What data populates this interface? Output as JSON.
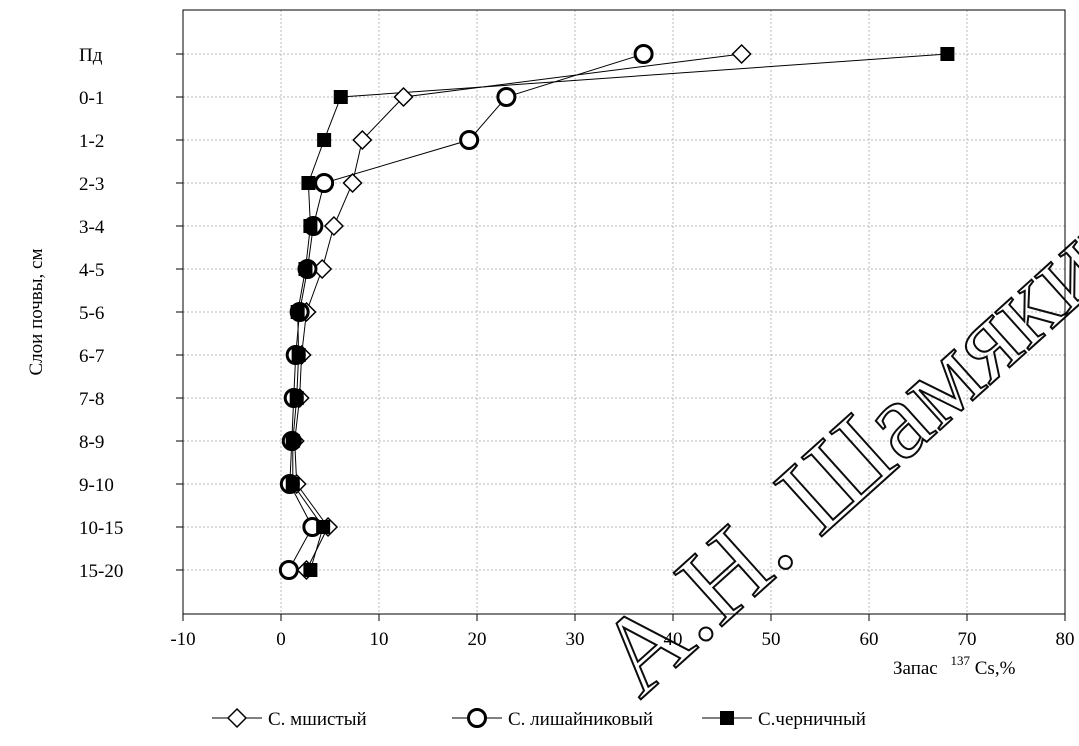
{
  "chart_data": {
    "type": "line",
    "title": "",
    "xlabel": "Запас",
    "xlabel_isotope_sup": "137",
    "xlabel_rest": "Cs,%",
    "ylabel": "Слои почвы, см",
    "xlim": [
      -10,
      80
    ],
    "x_ticks": [
      "-10",
      "0",
      "10",
      "20",
      "30",
      "40",
      "50",
      "60",
      "70",
      "80"
    ],
    "categories": [
      "Пд",
      "0-1",
      "1-2",
      "2-3",
      "3-4",
      "4-5",
      "5-6",
      "6-7",
      "7-8",
      "8-9",
      "9-10",
      "10-15",
      "15-20"
    ],
    "grid": true,
    "legend_position": "bottom",
    "series": [
      {
        "name": "С. мшистый",
        "marker": "diamond",
        "values": [
          47,
          12.5,
          8.3,
          7.3,
          5.4,
          4.2,
          2.6,
          2.1,
          1.9,
          1.4,
          1.6,
          4.8,
          2.6
        ]
      },
      {
        "name": "С. лишайниковый",
        "marker": "circle",
        "values": [
          37,
          23,
          19.2,
          4.4,
          3.3,
          2.7,
          1.9,
          1.5,
          1.3,
          1.1,
          0.9,
          3.2,
          0.8
        ]
      },
      {
        "name": "С.черничный",
        "marker": "square",
        "values": [
          68,
          6.1,
          4.4,
          2.8,
          3.0,
          2.5,
          1.7,
          1.8,
          1.6,
          1.2,
          1.2,
          4.3,
          3.0
        ]
      }
    ]
  },
  "watermark": "А.Н. Шамякина"
}
